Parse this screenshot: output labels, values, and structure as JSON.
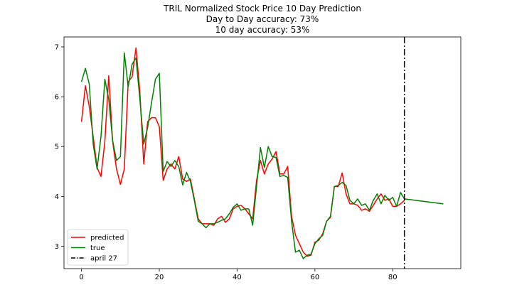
{
  "chart_data": {
    "type": "line",
    "title": [
      "TRIL Normalized Stock Price 10 Day Prediction",
      "Day to Day accuracy: 73%",
      "10 day accuracy: 53%"
    ],
    "xlim": [
      -4.5,
      97.5
    ],
    "ylim": [
      2.55,
      7.2
    ],
    "xticks": [
      0,
      20,
      40,
      60,
      80
    ],
    "yticks": [
      3,
      4,
      5,
      6,
      7
    ],
    "grid": false,
    "legend_placement": "lower-left",
    "series": [
      {
        "name": "predicted",
        "color": "#ff0000",
        "x": [
          0,
          1,
          2,
          3,
          4,
          5,
          6,
          7,
          8,
          9,
          10,
          11,
          12,
          13,
          14,
          15,
          16,
          17,
          18,
          19,
          20,
          21,
          22,
          23,
          24,
          25,
          26,
          27,
          28,
          29,
          30,
          31,
          32,
          33,
          34,
          35,
          36,
          37,
          38,
          39,
          40,
          41,
          42,
          43,
          44,
          45,
          46,
          47,
          48,
          49,
          50,
          51,
          52,
          53,
          54,
          55,
          56,
          57,
          58,
          59,
          60,
          61,
          62,
          63,
          64,
          65,
          66,
          67,
          68,
          69,
          70,
          71,
          72,
          73,
          74,
          75,
          76,
          77,
          78,
          79,
          80,
          81,
          82,
          83
        ],
        "y": [
          5.5,
          6.22,
          5.8,
          5.2,
          4.58,
          4.4,
          5.1,
          6.42,
          5.1,
          4.55,
          4.24,
          4.55,
          6.3,
          6.4,
          6.98,
          6.1,
          4.65,
          5.5,
          5.58,
          5.58,
          5.4,
          4.32,
          4.55,
          4.65,
          4.55,
          4.8,
          4.35,
          4.3,
          4.35,
          3.95,
          3.55,
          3.45,
          3.45,
          3.45,
          3.42,
          3.55,
          3.6,
          3.48,
          3.55,
          3.75,
          3.8,
          3.82,
          3.75,
          3.65,
          3.55,
          4.32,
          4.72,
          4.45,
          4.65,
          4.75,
          4.9,
          4.45,
          4.45,
          4.6,
          3.6,
          3.22,
          3.05,
          2.88,
          2.8,
          2.82,
          3.08,
          3.12,
          3.25,
          3.5,
          3.58,
          4.2,
          4.2,
          4.47,
          4.05,
          3.85,
          3.85,
          3.82,
          3.72,
          3.75,
          3.7,
          3.82,
          3.95,
          4.05,
          3.92,
          3.95,
          3.8,
          3.8,
          3.85,
          3.92
        ]
      },
      {
        "name": "true",
        "color": "#008000",
        "x": [
          0,
          1,
          2,
          3,
          4,
          5,
          6,
          7,
          8,
          9,
          10,
          11,
          12,
          13,
          14,
          15,
          16,
          17,
          18,
          19,
          20,
          21,
          22,
          23,
          24,
          25,
          26,
          27,
          28,
          29,
          30,
          31,
          32,
          33,
          34,
          35,
          36,
          37,
          38,
          39,
          40,
          41,
          42,
          43,
          44,
          45,
          46,
          47,
          48,
          49,
          50,
          51,
          52,
          53,
          54,
          55,
          56,
          57,
          58,
          59,
          60,
          61,
          62,
          63,
          64,
          65,
          66,
          67,
          68,
          69,
          70,
          71,
          72,
          73,
          74,
          75,
          76,
          77,
          78,
          79,
          80,
          81,
          82,
          83,
          93
        ],
        "y": [
          6.3,
          6.57,
          6.25,
          5.05,
          4.55,
          5.2,
          6.35,
          5.95,
          5.12,
          4.72,
          4.8,
          6.88,
          6.2,
          6.65,
          6.78,
          5.95,
          5.05,
          5.38,
          5.88,
          6.35,
          6.47,
          4.5,
          4.7,
          4.6,
          4.72,
          4.6,
          4.23,
          4.48,
          4.3,
          3.92,
          3.5,
          3.45,
          3.37,
          3.45,
          3.45,
          3.48,
          3.52,
          3.55,
          3.65,
          3.78,
          3.85,
          3.72,
          3.75,
          3.75,
          3.42,
          4.2,
          4.98,
          4.58,
          5.0,
          4.8,
          4.78,
          4.4,
          4.42,
          4.38,
          3.5,
          2.88,
          2.92,
          2.75,
          2.82,
          2.84,
          3.05,
          3.15,
          3.22,
          3.5,
          3.6,
          4.2,
          4.22,
          4.28,
          4.22,
          3.92,
          3.85,
          3.95,
          3.82,
          3.85,
          3.72,
          3.92,
          4.05,
          3.85,
          4.02,
          3.92,
          3.98,
          3.8,
          4.08,
          3.95,
          3.85
        ]
      }
    ],
    "vline": {
      "x": 83,
      "label": "april 27",
      "color": "#000000"
    }
  }
}
